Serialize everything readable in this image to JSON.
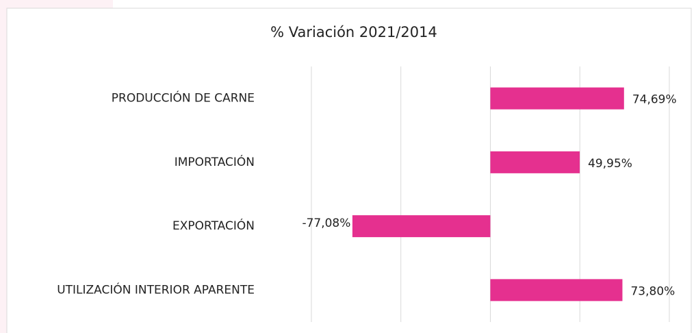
{
  "chart_data": {
    "type": "bar",
    "orientation": "horizontal",
    "title": "% Variación 2021/2014",
    "categories": [
      "PRODUCCIÓN DE CARNE",
      "IMPORTACIÓN",
      "EXPORTACIÓN",
      "UTILIZACIÓN INTERIOR APARENTE"
    ],
    "values": [
      74.69,
      49.95,
      -77.08,
      73.8
    ],
    "value_labels": [
      "74,69%",
      "49,95%",
      "-77,08%",
      "73,80%"
    ],
    "color": "#e5308f",
    "xlim": [
      -100,
      100
    ],
    "xticks": [
      -100,
      -50,
      0,
      50,
      100
    ],
    "grid": true
  }
}
